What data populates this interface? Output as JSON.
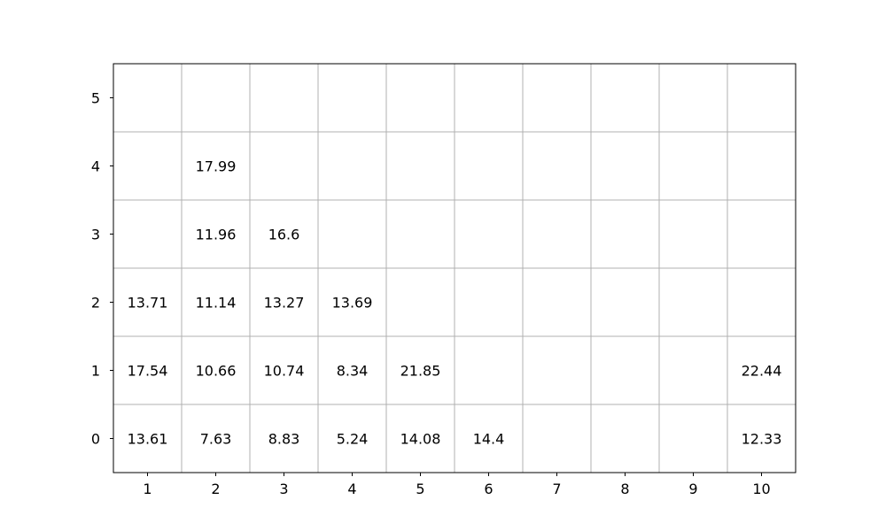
{
  "chart_data": {
    "type": "table",
    "x_ticks": [
      "1",
      "2",
      "3",
      "4",
      "5",
      "6",
      "7",
      "8",
      "9",
      "10"
    ],
    "y_ticks": [
      "0",
      "1",
      "2",
      "3",
      "4",
      "5"
    ],
    "xlim": [
      0.5,
      10.5
    ],
    "ylim": [
      -0.5,
      5.5
    ],
    "grid": true,
    "cells": [
      {
        "x": 1,
        "y": 0,
        "text": "13.61"
      },
      {
        "x": 2,
        "y": 0,
        "text": "7.63"
      },
      {
        "x": 3,
        "y": 0,
        "text": "8.83"
      },
      {
        "x": 4,
        "y": 0,
        "text": "5.24"
      },
      {
        "x": 5,
        "y": 0,
        "text": "14.08"
      },
      {
        "x": 6,
        "y": 0,
        "text": "14.4"
      },
      {
        "x": 10,
        "y": 0,
        "text": "12.33"
      },
      {
        "x": 1,
        "y": 1,
        "text": "17.54"
      },
      {
        "x": 2,
        "y": 1,
        "text": "10.66"
      },
      {
        "x": 3,
        "y": 1,
        "text": "10.74"
      },
      {
        "x": 4,
        "y": 1,
        "text": "8.34"
      },
      {
        "x": 5,
        "y": 1,
        "text": "21.85"
      },
      {
        "x": 10,
        "y": 1,
        "text": "22.44"
      },
      {
        "x": 1,
        "y": 2,
        "text": "13.71"
      },
      {
        "x": 2,
        "y": 2,
        "text": "11.14"
      },
      {
        "x": 3,
        "y": 2,
        "text": "13.27"
      },
      {
        "x": 4,
        "y": 2,
        "text": "13.69"
      },
      {
        "x": 2,
        "y": 3,
        "text": "11.96"
      },
      {
        "x": 3,
        "y": 3,
        "text": "16.6"
      },
      {
        "x": 2,
        "y": 4,
        "text": "17.99"
      }
    ]
  }
}
